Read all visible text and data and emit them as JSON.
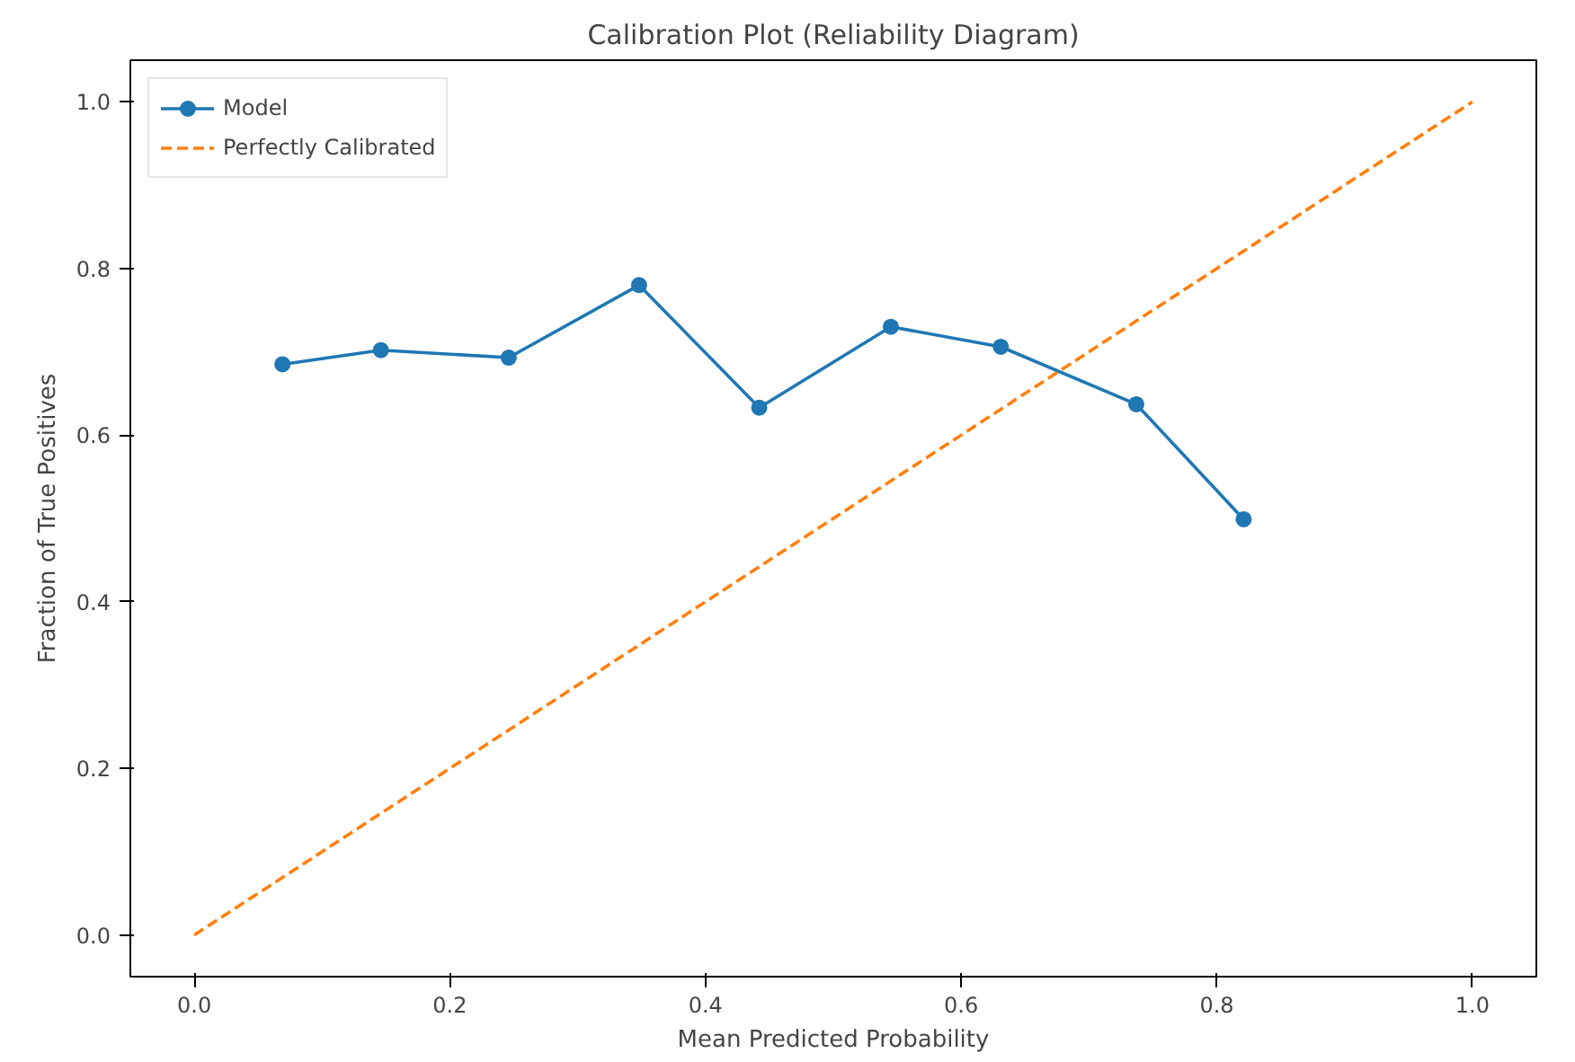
{
  "chart_data": {
    "type": "line",
    "title": "Calibration Plot (Reliability Diagram)",
    "xlabel": "Mean Predicted Probability",
    "ylabel": "Fraction of True Positives",
    "xlim": [
      -0.05,
      1.05
    ],
    "ylim": [
      -0.05,
      1.05
    ],
    "xticks": [
      {
        "value": 0,
        "label": "0.0"
      },
      0.2,
      0.4,
      0.6,
      0.8,
      {
        "value": 1,
        "label": "1.0"
      }
    ],
    "yticks": [
      {
        "value": 0,
        "label": "0.0"
      },
      0.2,
      0.4,
      0.6,
      0.8,
      {
        "value": 1,
        "label": "1.0"
      }
    ],
    "grid": false,
    "legend": "top left",
    "series": [
      {
        "name": "Model",
        "color": "#1f77b4",
        "marker": "circle",
        "line_style": "solid",
        "x": [
          0.069,
          0.146,
          0.246,
          0.348,
          0.442,
          0.545,
          0.631,
          0.737,
          0.821
        ],
        "values": [
          0.685,
          0.702,
          0.693,
          0.78,
          0.633,
          0.73,
          0.706,
          0.637,
          0.499
        ]
      },
      {
        "name": "Perfectly Calibrated",
        "color": "#ff7f0e",
        "marker": "none",
        "line_style": "dashed",
        "x": [
          0,
          1
        ],
        "values": [
          0,
          1
        ]
      }
    ]
  }
}
